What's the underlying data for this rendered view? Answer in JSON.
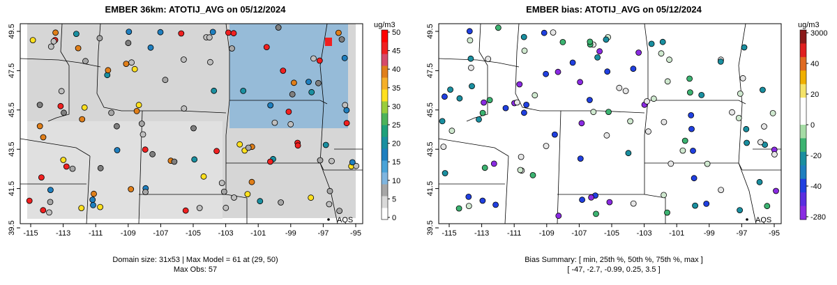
{
  "left": {
    "title": "EMBER 36km: ATOTIJ_AVG on 05/12/2024",
    "units": "ug/m3",
    "caption_line1": "Domain size: 31x53 | Max Model = 61 at (29, 50)",
    "caption_line2": "Max Obs: 57",
    "station_label": "AQS",
    "x_ticks": [
      "-115",
      "-113",
      "-111",
      "-109",
      "-107",
      "-105",
      "-103",
      "-101",
      "-99",
      "-97",
      "-95"
    ],
    "y_ticks": [
      "39.5",
      "41.5",
      "43.5",
      "45.5",
      "47.5",
      "49.5"
    ],
    "colorbar_ticks": [
      "0",
      "5",
      "10",
      "15",
      "20",
      "25",
      "30",
      "35",
      "40",
      "45",
      "50"
    ],
    "colorbar_colors": [
      "#ffffff",
      "#d9d9d9",
      "#a6a6a6",
      "#7fb5df",
      "#4aa3d8",
      "#1f7fbf",
      "#1a8fa0",
      "#1fa07a",
      "#4db35a",
      "#9acd3c",
      "#ffe01f",
      "#f5b02a",
      "#e07f1a",
      "#d64a6a",
      "#f02020",
      "#ff0000"
    ]
  },
  "right": {
    "title": "EMBER bias: ATOTIJ_AVG on 05/12/2024",
    "units": "ug/m3",
    "caption_line1": "Bias Summary: [ min, 25th %, 50th %, 75th %, max ]",
    "caption_line2": "[ -47,   -2.7,   -0.99,   0.25,   3.5 ]",
    "station_label": "AQS",
    "x_ticks": [
      "-115",
      "-113",
      "-111",
      "-109",
      "-107",
      "-105",
      "-103",
      "-101",
      "-99",
      "-97",
      "-95"
    ],
    "y_ticks": [
      "39.5",
      "41.5",
      "43.5",
      "45.5",
      "47.5",
      "49.5"
    ],
    "colorbar_ticks": [
      "3000",
      "40",
      "20",
      "0",
      "-20",
      "-40",
      "-280"
    ],
    "colorbar_colors": [
      "#8b1a1a",
      "#e02020",
      "#e06a20",
      "#f0b000",
      "#f5e36a",
      "#ffffff",
      "#ffffff",
      "#a6dca6",
      "#3cb371",
      "#1a8fa0",
      "#1f7fbf",
      "#2040e0",
      "#5a2ee0",
      "#8a2be2"
    ]
  },
  "colors": {
    "land": "#ffffff",
    "border": "#000000",
    "no_data": "#f4f4f4"
  }
}
